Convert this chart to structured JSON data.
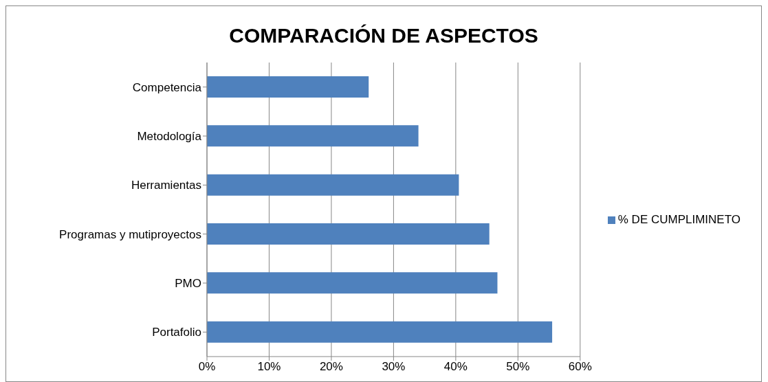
{
  "chart_data": {
    "type": "bar",
    "orientation": "horizontal",
    "title": "COMPARACIÓN DE ASPECTOS",
    "categories": [
      "Competencia",
      "Metodología",
      "Herramientas",
      "Programas y mutiproyectos",
      "PMO",
      "Portafolio"
    ],
    "series": [
      {
        "name": "% DE CUMPLIMINETO",
        "color": "#4f81bd",
        "values": [
          26,
          34,
          40.5,
          45.4,
          46.7,
          55.5
        ]
      }
    ],
    "xlim": [
      0,
      60
    ],
    "xticks": [
      {
        "value": 0,
        "label": "0%"
      },
      {
        "value": 10,
        "label": "10%"
      },
      {
        "value": 20,
        "label": "20%"
      },
      {
        "value": 30,
        "label": "30%"
      },
      {
        "value": 40,
        "label": "40%"
      },
      {
        "value": 50,
        "label": "50%"
      },
      {
        "value": 60,
        "label": "60%"
      }
    ],
    "grid": "x",
    "legend": "right"
  }
}
